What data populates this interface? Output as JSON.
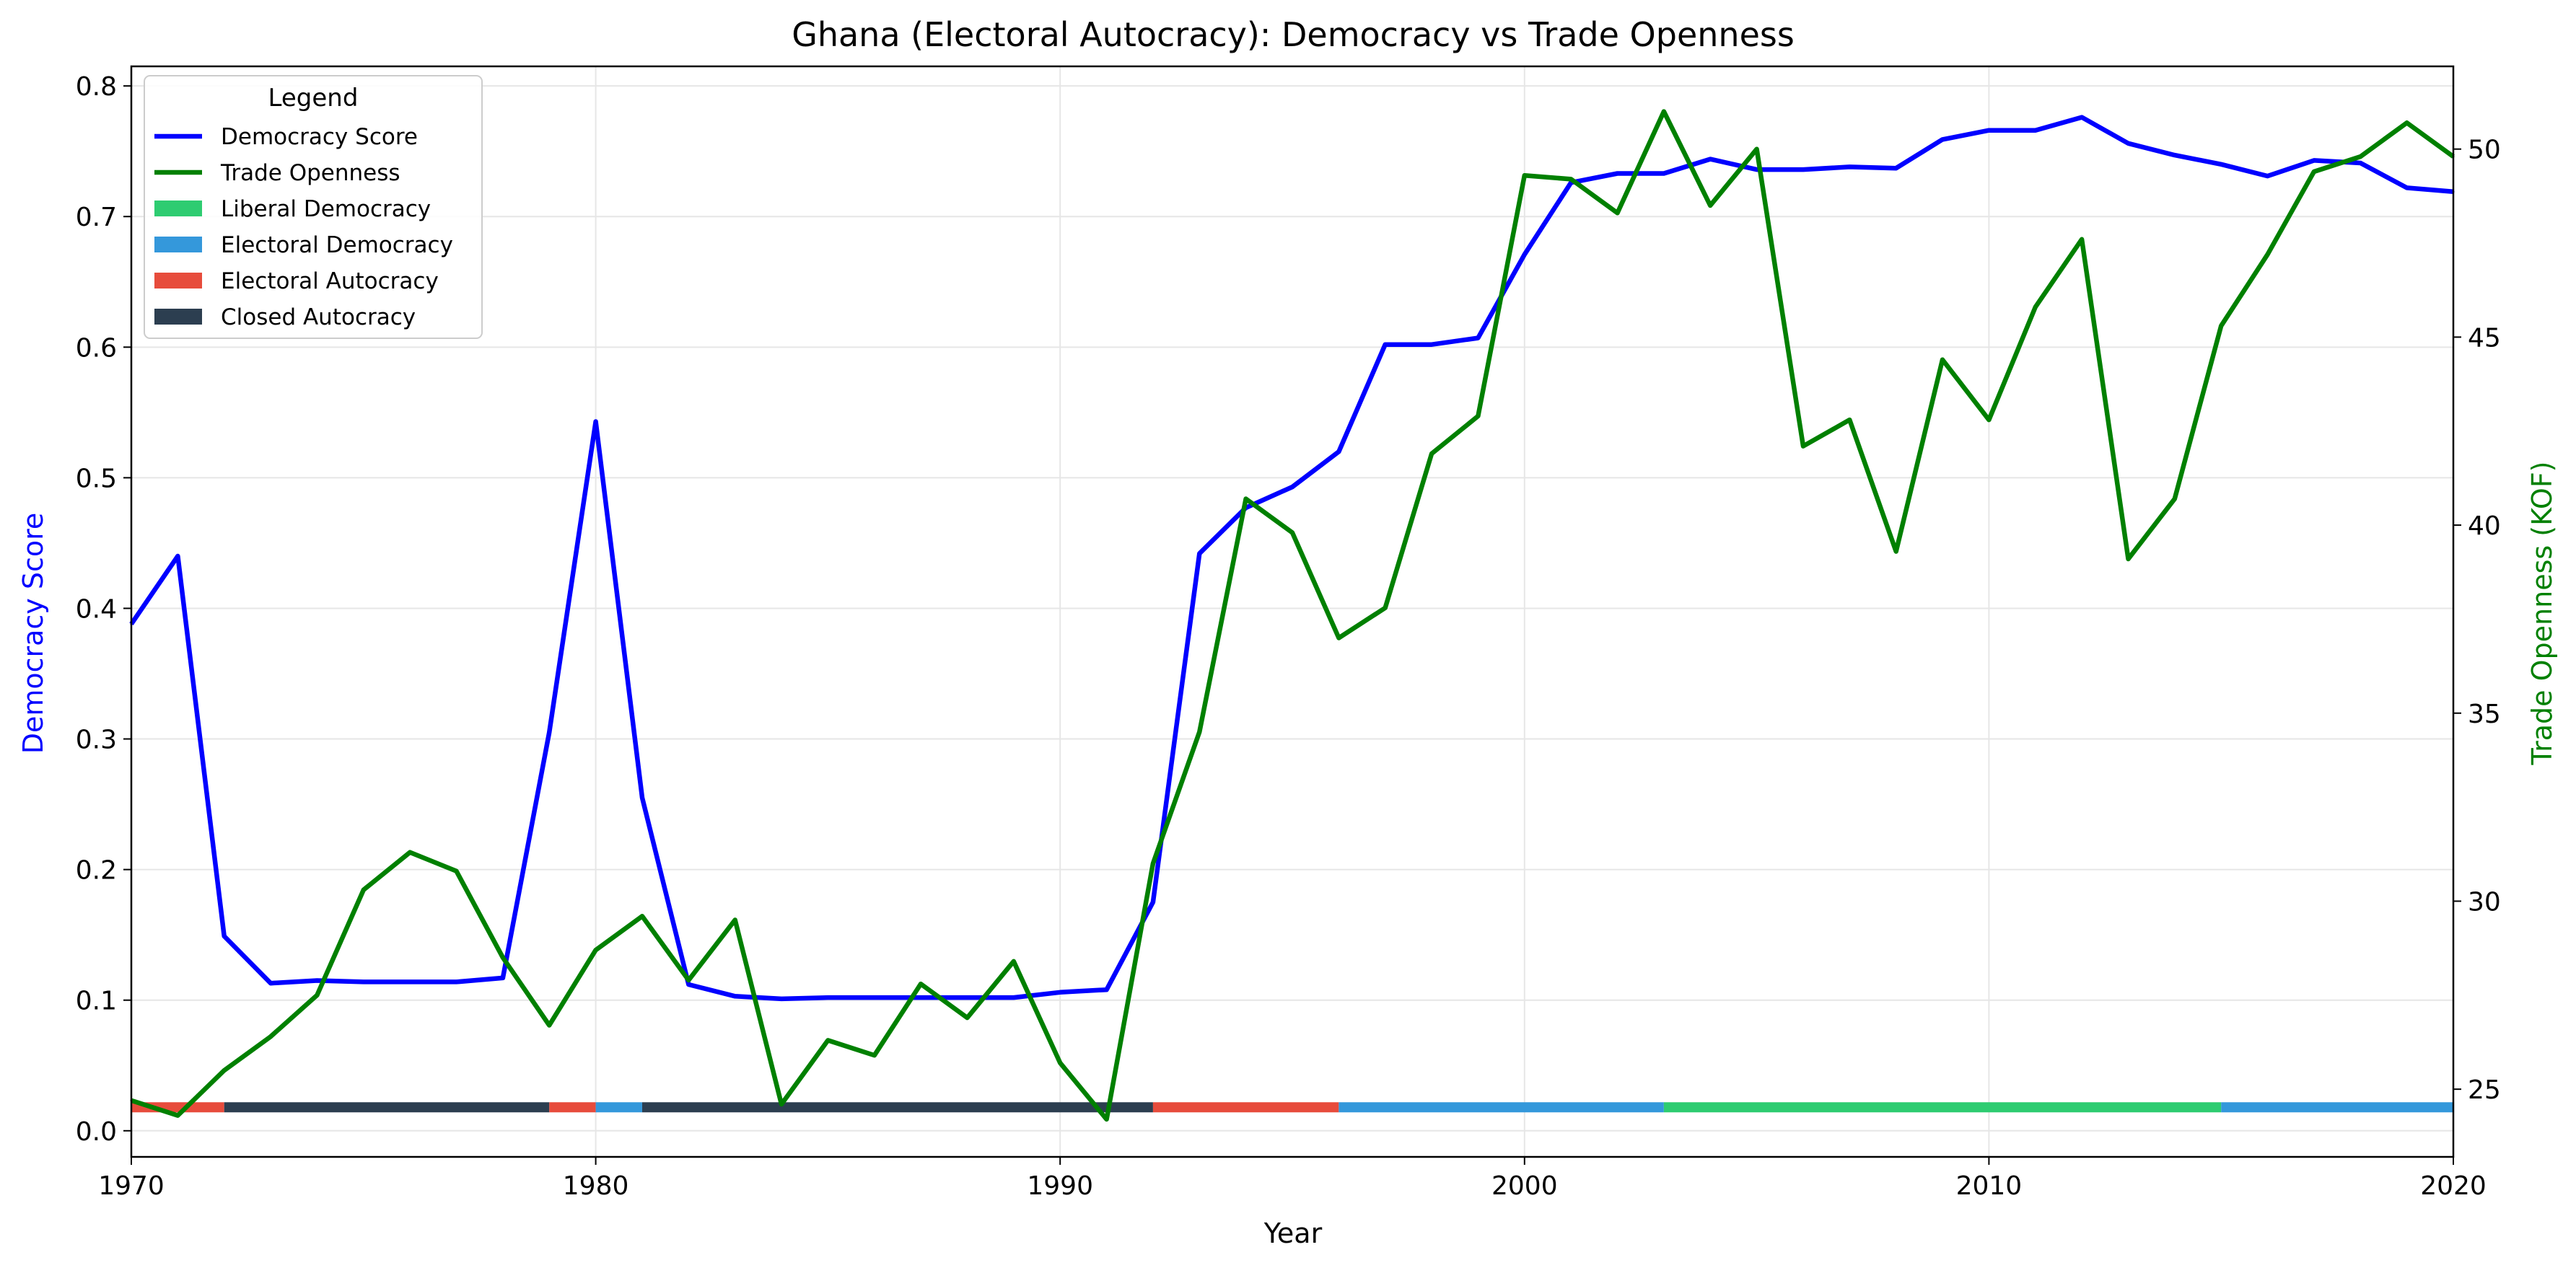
{
  "chart_data": {
    "type": "line",
    "title": "Ghana (Electoral Autocracy): Democracy vs Trade Openness",
    "xlabel": "Year",
    "ylabel_left": "Democracy Score",
    "ylabel_right": "Trade Openness (KOF)",
    "xlim": [
      1970,
      2020
    ],
    "ylim_left": [
      -0.02,
      0.815
    ],
    "ylim_right": [
      23.2,
      52.2
    ],
    "x_ticks": [
      "1970",
      "1980",
      "1990",
      "2000",
      "2010",
      "2020"
    ],
    "y_left_ticks": [
      "0.0",
      "0.1",
      "0.2",
      "0.3",
      "0.4",
      "0.5",
      "0.6",
      "0.7",
      "0.8"
    ],
    "y_right_ticks": [
      "25",
      "30",
      "35",
      "40",
      "45",
      "50"
    ],
    "grid": true,
    "legend_position": "top-left",
    "legend": {
      "title": "Legend",
      "entries": [
        {
          "label": "Democracy Score",
          "type": "line",
          "color": "#0000ff"
        },
        {
          "label": "Trade Openness",
          "type": "line",
          "color": "#008000"
        },
        {
          "label": "Liberal Democracy",
          "type": "patch",
          "color": "#2ecc71"
        },
        {
          "label": "Electoral Democracy",
          "type": "patch",
          "color": "#3498db"
        },
        {
          "label": "Electoral Autocracy",
          "type": "patch",
          "color": "#e74c3c"
        },
        {
          "label": "Closed Autocracy",
          "type": "patch",
          "color": "#2c3e50"
        }
      ]
    },
    "x": [
      1970,
      1971,
      1972,
      1973,
      1974,
      1975,
      1976,
      1977,
      1978,
      1979,
      1980,
      1981,
      1982,
      1983,
      1984,
      1985,
      1986,
      1987,
      1988,
      1989,
      1990,
      1991,
      1992,
      1993,
      1994,
      1995,
      1996,
      1997,
      1998,
      1999,
      2000,
      2001,
      2002,
      2003,
      2004,
      2005,
      2006,
      2007,
      2008,
      2009,
      2010,
      2011,
      2012,
      2013,
      2014,
      2015,
      2016,
      2017,
      2018,
      2019,
      2020
    ],
    "series": [
      {
        "name": "Democracy Score",
        "axis": "left",
        "color": "#0000ff",
        "values": [
          0.388,
          0.44,
          0.149,
          0.113,
          0.115,
          0.114,
          0.114,
          0.114,
          0.117,
          0.305,
          0.543,
          0.255,
          0.112,
          0.103,
          0.101,
          0.102,
          0.102,
          0.102,
          0.102,
          0.102,
          0.106,
          0.108,
          0.175,
          0.442,
          0.477,
          0.493,
          0.52,
          0.602,
          0.602,
          0.607,
          0.671,
          0.726,
          0.733,
          0.733,
          0.744,
          0.736,
          0.736,
          0.738,
          0.737,
          0.759,
          0.766,
          0.766,
          0.776,
          0.756,
          0.747,
          0.74,
          0.731,
          0.743,
          0.741,
          0.722,
          0.719
        ]
      },
      {
        "name": "Trade Openness",
        "axis": "right",
        "color": "#008000",
        "values": [
          24.7,
          24.3,
          25.5,
          26.4,
          27.5,
          30.3,
          31.3,
          30.8,
          28.5,
          26.7,
          28.7,
          29.6,
          27.9,
          29.5,
          24.6,
          26.3,
          25.9,
          27.8,
          26.9,
          28.4,
          25.7,
          24.2,
          31.0,
          34.5,
          40.7,
          39.8,
          37.0,
          37.8,
          41.9,
          42.9,
          49.3,
          49.2,
          48.3,
          51.0,
          48.5,
          50.0,
          42.1,
          42.8,
          39.3,
          44.4,
          42.8,
          45.8,
          47.6,
          39.1,
          40.7,
          45.3,
          47.2,
          49.4,
          49.8,
          50.7,
          49.8
        ]
      }
    ],
    "regime_bands": [
      {
        "start": 1970,
        "end": 1972,
        "regime": "Electoral Autocracy",
        "color": "#e74c3c"
      },
      {
        "start": 1972,
        "end": 1979,
        "regime": "Closed Autocracy",
        "color": "#2c3e50"
      },
      {
        "start": 1979,
        "end": 1980,
        "regime": "Electoral Autocracy",
        "color": "#e74c3c"
      },
      {
        "start": 1980,
        "end": 1981,
        "regime": "Electoral Democracy",
        "color": "#3498db"
      },
      {
        "start": 1981,
        "end": 1992,
        "regime": "Closed Autocracy",
        "color": "#2c3e50"
      },
      {
        "start": 1992,
        "end": 1996,
        "regime": "Electoral Autocracy",
        "color": "#e74c3c"
      },
      {
        "start": 1996,
        "end": 2003,
        "regime": "Electoral Democracy",
        "color": "#3498db"
      },
      {
        "start": 2003,
        "end": 2015,
        "regime": "Liberal Democracy",
        "color": "#2ecc71"
      },
      {
        "start": 2015,
        "end": 2020,
        "regime": "Electoral Democracy",
        "color": "#3498db"
      }
    ]
  }
}
